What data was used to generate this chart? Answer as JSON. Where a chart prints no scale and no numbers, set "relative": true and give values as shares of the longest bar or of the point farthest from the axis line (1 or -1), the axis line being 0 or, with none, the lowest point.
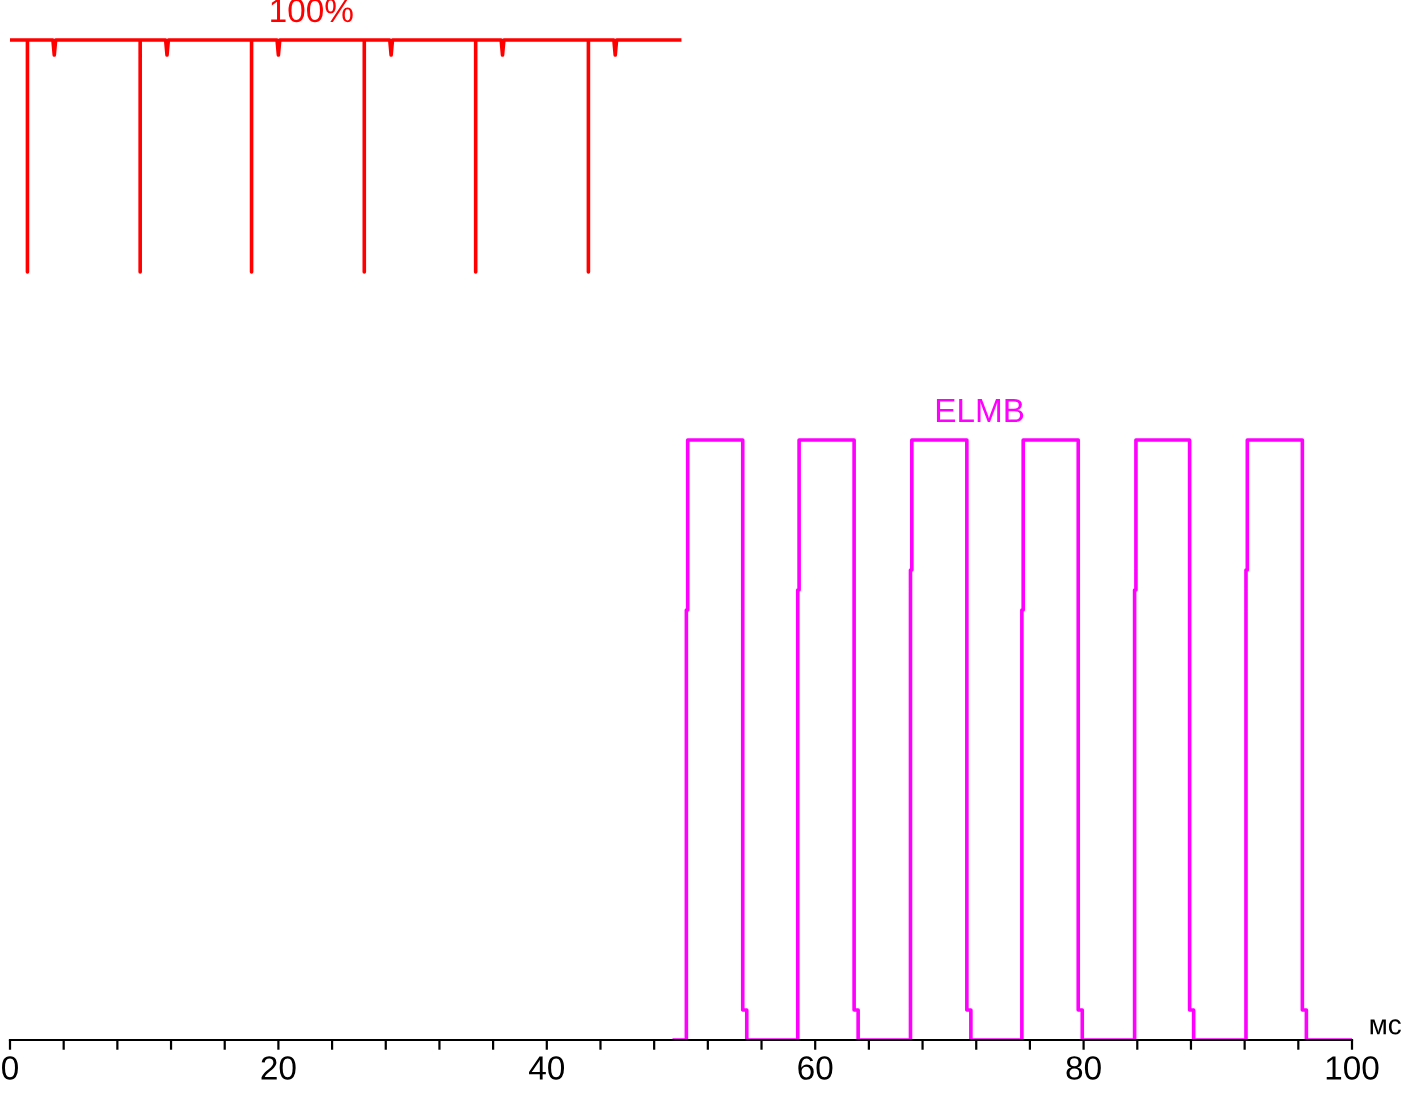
{
  "chart_data": {
    "type": "line",
    "relative": true,
    "xlabel": "мс",
    "xlim": [
      0,
      100
    ],
    "xticks": [
      0,
      {
        "value": 4,
        "label": null
      },
      {
        "value": 8,
        "label": null
      },
      {
        "value": 12,
        "label": null
      },
      {
        "value": 16,
        "label": null
      },
      20,
      {
        "value": 24,
        "label": null
      },
      {
        "value": 28,
        "label": null
      },
      {
        "value": 32,
        "label": null
      },
      {
        "value": 36,
        "label": null
      },
      40,
      {
        "value": 44,
        "label": null
      },
      {
        "value": 48,
        "label": null
      },
      {
        "value": 52,
        "label": null
      },
      {
        "value": 56,
        "label": null
      },
      60,
      {
        "value": 64,
        "label": null
      },
      {
        "value": 68,
        "label": null
      },
      {
        "value": 72,
        "label": null
      },
      {
        "value": 76,
        "label": null
      },
      80,
      {
        "value": 84,
        "label": null
      },
      {
        "value": 88,
        "label": null
      },
      {
        "value": 92,
        "label": null
      },
      {
        "value": 96,
        "label": null
      },
      100
    ],
    "tick_labels": "x",
    "grid": false,
    "legend": false,
    "marker": "none",
    "line_style": "solid",
    "series": [
      {
        "name": "100%",
        "color": "#ff0000",
        "x": [
          0,
          1.3,
          1.3,
          1.3,
          3.2,
          3.3,
          3.4,
          9.7,
          9.7,
          9.7,
          11.6,
          11.7,
          11.8,
          18.0,
          18.0,
          18.0,
          19.9,
          20.0,
          20.1,
          26.4,
          26.4,
          26.4,
          28.3,
          28.4,
          28.5,
          34.7,
          34.7,
          34.7,
          36.6,
          36.7,
          36.8,
          43.1,
          43.1,
          43.1,
          45.0,
          45.1,
          45.2,
          49.9
        ],
        "values": [
          1,
          1,
          0.768,
          1,
          1,
          0.985,
          1,
          1,
          0.768,
          1,
          1,
          0.985,
          1,
          1,
          0.768,
          1,
          1,
          0.985,
          1,
          1,
          0.768,
          1,
          1,
          0.985,
          1,
          1,
          0.768,
          1,
          1,
          0.985,
          1,
          1,
          0.768,
          1,
          1,
          0.985,
          1,
          1
        ]
      },
      {
        "name": "ELMB",
        "color": "#ff00ff",
        "x": [
          49.5,
          50.4,
          50.4,
          50.5,
          50.5,
          54.6,
          54.6,
          54.9,
          54.9,
          58.7,
          58.7,
          58.8,
          58.8,
          62.9,
          62.9,
          63.2,
          63.2,
          67.1,
          67.1,
          67.2,
          67.2,
          71.3,
          71.3,
          71.6,
          71.6,
          75.4,
          75.4,
          75.5,
          75.5,
          79.6,
          79.6,
          79.9,
          79.9,
          83.8,
          83.8,
          83.9,
          83.9,
          87.9,
          87.9,
          88.2,
          88.2,
          92.1,
          92.1,
          92.2,
          92.2,
          96.3,
          96.3,
          96.6,
          96.6,
          100
        ],
        "values": [
          0,
          0,
          0.43,
          0.43,
          0.6,
          0.6,
          0.03,
          0.03,
          0,
          0,
          0.45,
          0.45,
          0.6,
          0.6,
          0.03,
          0.03,
          0,
          0,
          0.47,
          0.47,
          0.6,
          0.6,
          0.03,
          0.03,
          0,
          0,
          0.43,
          0.43,
          0.6,
          0.6,
          0.03,
          0.03,
          0,
          0,
          0.45,
          0.45,
          0.6,
          0.6,
          0.03,
          0.03,
          0,
          0,
          0.47,
          0.47,
          0.6,
          0.6,
          0.03,
          0.03,
          0,
          0
        ]
      }
    ]
  }
}
